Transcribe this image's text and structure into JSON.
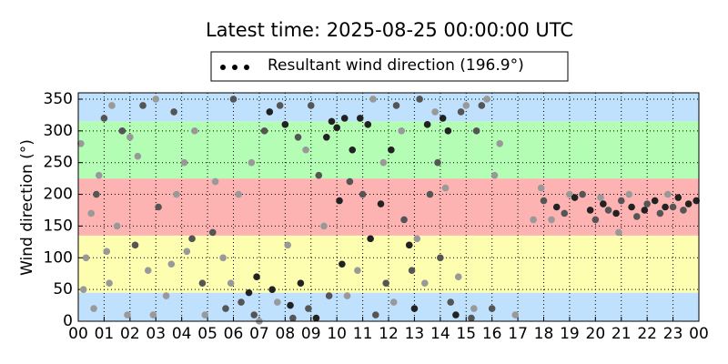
{
  "chart_data": {
    "type": "scatter",
    "title": "Latest time: 2025-08-25 00:00:00 UTC",
    "y_label": "Wind direction (°)",
    "legend_label": "Resultant wind direction (196.9°)",
    "xlim": [
      0,
      24
    ],
    "ylim": [
      0,
      360
    ],
    "xticks": [
      {
        "value": 0,
        "label": "00"
      },
      {
        "value": 1,
        "label": "01"
      },
      {
        "value": 2,
        "label": "02"
      },
      {
        "value": 3,
        "label": "03"
      },
      {
        "value": 4,
        "label": "04"
      },
      {
        "value": 5,
        "label": "05"
      },
      {
        "value": 6,
        "label": "06"
      },
      {
        "value": 7,
        "label": "07"
      },
      {
        "value": 8,
        "label": "08"
      },
      {
        "value": 9,
        "label": "09"
      },
      {
        "value": 10,
        "label": "10"
      },
      {
        "value": 11,
        "label": "11"
      },
      {
        "value": 12,
        "label": "12"
      },
      {
        "value": 13,
        "label": "13"
      },
      {
        "value": 14,
        "label": "14"
      },
      {
        "value": 15,
        "label": "15"
      },
      {
        "value": 16,
        "label": "16"
      },
      {
        "value": 17,
        "label": "17"
      },
      {
        "value": 18,
        "label": "18"
      },
      {
        "value": 19,
        "label": "19"
      },
      {
        "value": 20,
        "label": "20"
      },
      {
        "value": 21,
        "label": "21"
      },
      {
        "value": 22,
        "label": "22"
      },
      {
        "value": 23,
        "label": "23"
      },
      {
        "value": 24,
        "label": "00"
      }
    ],
    "yticks": [
      0,
      50,
      100,
      150,
      200,
      250,
      300,
      350
    ],
    "grid": true,
    "bands": [
      {
        "from": 0,
        "to": 45,
        "color": "#bfe1fd"
      },
      {
        "from": 45,
        "to": 135,
        "color": "#fefeb1"
      },
      {
        "from": 135,
        "to": 225,
        "color": "#feb3b3"
      },
      {
        "from": 225,
        "to": 315,
        "color": "#b4fdb4"
      },
      {
        "from": 315,
        "to": 360,
        "color": "#bfe1fd"
      }
    ],
    "series": [
      {
        "color": "#222222",
        "x": [
          6.6,
          6.9,
          7.5,
          8.2,
          8.6,
          9.6,
          9.8,
          10.0,
          10.3,
          10.9,
          11.2,
          10.1,
          10.2,
          11.3,
          9.2,
          13.5,
          14.1,
          14.3,
          12.1,
          18.5,
          19.2,
          19.8,
          20.3,
          20.8,
          21.4,
          21.9,
          22.3,
          22.7,
          23.2,
          23.6,
          23.9,
          12.8,
          11.7,
          8.0,
          7.4,
          13.0,
          14.6,
          10.6
        ],
        "values": [
          45,
          70,
          50,
          25,
          60,
          290,
          315,
          305,
          320,
          320,
          310,
          190,
          90,
          130,
          5,
          310,
          320,
          300,
          270,
          180,
          195,
          175,
          185,
          170,
          180,
          175,
          190,
          180,
          195,
          185,
          190,
          120,
          185,
          310,
          330,
          20,
          10,
          270
        ]
      },
      {
        "color": "#555555",
        "x": [
          1.0,
          1.7,
          2.5,
          3.1,
          4.4,
          5.2,
          5.7,
          6.3,
          6.8,
          7.2,
          7.8,
          8.5,
          8.9,
          9.3,
          9.7,
          10.5,
          11.0,
          11.5,
          11.9,
          12.3,
          12.6,
          13.2,
          13.6,
          14.0,
          14.4,
          14.8,
          15.2,
          15.6,
          16.0,
          18.0,
          18.8,
          19.5,
          20.0,
          20.5,
          21.0,
          21.6,
          22.0,
          22.5,
          23.0,
          23.4,
          3.7,
          2.2,
          0.7,
          4.8,
          6.0,
          12.9,
          15.4,
          9.0,
          13.9,
          8.3
        ],
        "values": [
          320,
          300,
          340,
          180,
          130,
          140,
          20,
          30,
          10,
          300,
          340,
          290,
          20,
          230,
          40,
          220,
          200,
          10,
          60,
          340,
          160,
          350,
          200,
          100,
          30,
          330,
          5,
          340,
          20,
          190,
          170,
          200,
          160,
          175,
          190,
          165,
          185,
          170,
          180,
          175,
          330,
          120,
          200,
          60,
          350,
          80,
          300,
          340,
          250,
          5
        ]
      },
      {
        "color": "#999999",
        "x": [
          0.1,
          0.3,
          0.5,
          0.8,
          1.2,
          1.5,
          1.9,
          2.3,
          2.7,
          3.0,
          3.4,
          3.8,
          4.1,
          4.5,
          4.9,
          5.3,
          5.6,
          5.9,
          6.2,
          6.7,
          7.0,
          7.7,
          8.1,
          8.8,
          9.5,
          10.4,
          10.8,
          11.4,
          11.8,
          12.2,
          12.5,
          13.1,
          13.4,
          13.8,
          14.2,
          14.7,
          15.0,
          15.3,
          15.8,
          16.1,
          16.3,
          16.9,
          17.6,
          17.9,
          18.3,
          19.0,
          20.2,
          20.9,
          21.3,
          22.8,
          2.0,
          1.3,
          0.2,
          3.6,
          4.2,
          0.6,
          2.9,
          1.1
        ],
        "values": [
          280,
          100,
          170,
          230,
          60,
          150,
          10,
          260,
          80,
          350,
          40,
          200,
          250,
          300,
          10,
          220,
          100,
          60,
          200,
          250,
          0,
          30,
          120,
          270,
          150,
          40,
          80,
          350,
          250,
          30,
          300,
          130,
          60,
          330,
          210,
          70,
          340,
          20,
          350,
          230,
          280,
          10,
          160,
          210,
          160,
          200,
          195,
          140,
          200,
          200,
          290,
          340,
          50,
          90,
          110,
          20,
          10,
          110
        ]
      }
    ]
  }
}
